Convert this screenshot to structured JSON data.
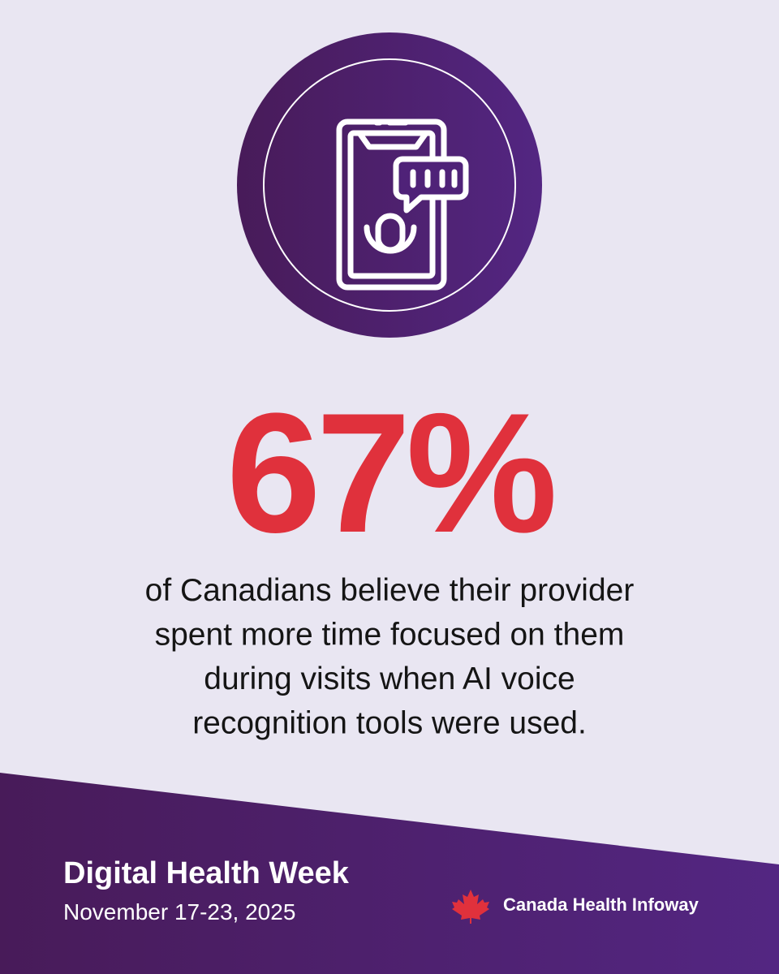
{
  "stat": {
    "value": "67%",
    "description": [
      "of Canadians believe their provider",
      "spent more time focused on them",
      "during visits when AI voice",
      "recognition tools were used."
    ]
  },
  "footer": {
    "title": "Digital Health Week",
    "date": "November 17-23, 2025",
    "logo": "Canada Health Infoway"
  }
}
